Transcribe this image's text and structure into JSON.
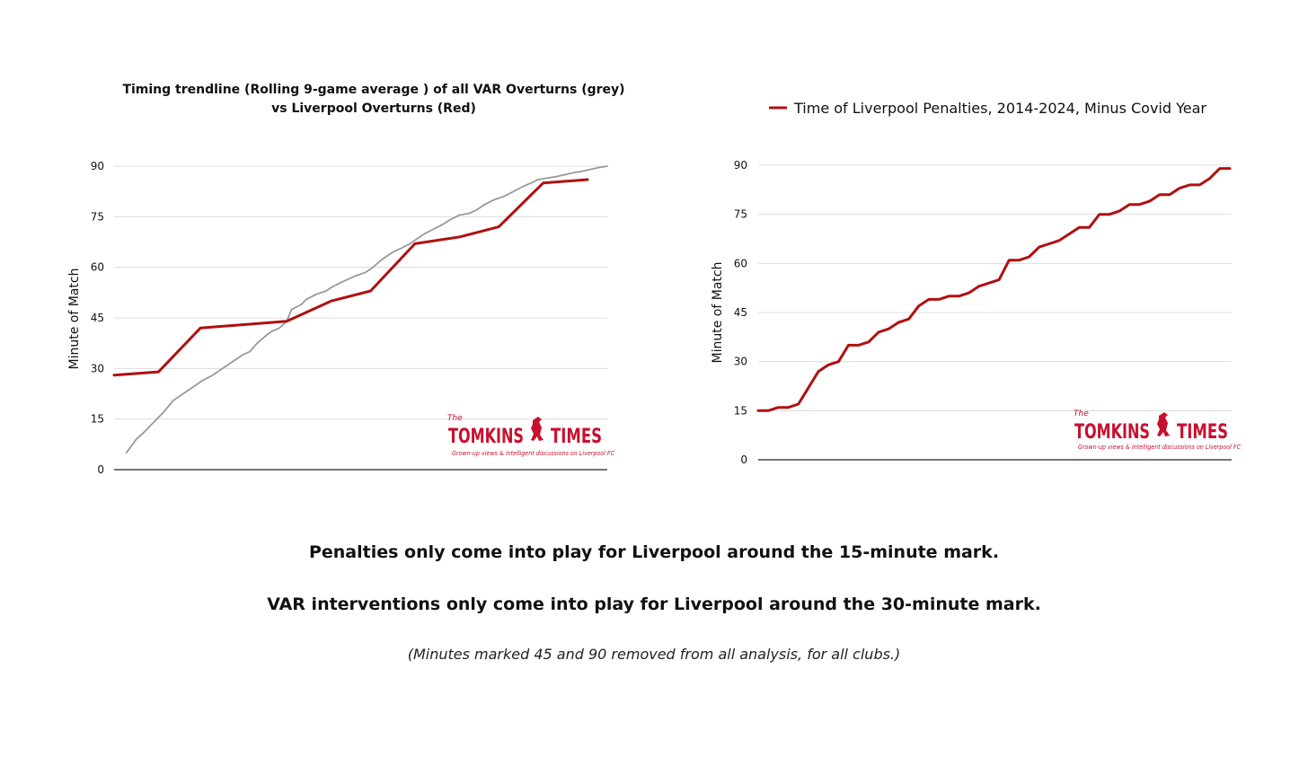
{
  "brand": {
    "the": "The",
    "name_left": "TOMKINS",
    "name_right": "TIMES",
    "tagline": "Grown-up views & intelligent discussions on Liverpool FC",
    "color": "#c8102e"
  },
  "captions": {
    "line1": "Penalties only come into play for Liverpool around the 15-minute mark.",
    "line2": "VAR interventions only come into play for Liverpool around the 30-minute mark.",
    "line3": "(Minutes marked 45 and 90 removed from all analysis, for all clubs.)"
  },
  "chart_data": [
    {
      "type": "line",
      "title": "Timing trendline (Rolling 9-game average ) of all VAR Overturns (grey) vs Liverpool Overturns (Red)",
      "title_lines": [
        "Timing trendline (Rolling 9-game average ) of all VAR Overturns (grey)",
        "vs Liverpool Overturns (Red)"
      ],
      "xlabel": "",
      "ylabel": "Minute of Match",
      "ylim": [
        0,
        90
      ],
      "yticks": [
        0,
        15,
        30,
        45,
        60,
        75,
        90
      ],
      "xlim": [
        0,
        100
      ],
      "grid": true,
      "legend": "none",
      "series": [
        {
          "color": "#999999",
          "x": [
            2.5,
            4.5,
            6,
            8,
            10,
            12,
            13.5,
            15,
            17,
            18,
            20,
            22,
            24,
            25,
            26,
            27.5,
            29,
            31,
            32,
            33.5,
            35,
            36,
            38,
            39,
            41,
            43,
            44,
            46,
            47.5,
            49,
            51,
            52.5,
            54,
            55.5,
            56.5,
            58,
            60,
            61.5,
            63,
            65,
            67,
            68,
            70,
            72,
            73.5,
            75,
            77,
            79,
            81,
            83,
            84.5,
            86,
            88,
            90,
            91.5,
            93,
            95,
            96.5,
            98,
            100
          ],
          "y": [
            5,
            9,
            11,
            14,
            17,
            20.5,
            22,
            23.5,
            25.5,
            26.5,
            28,
            30,
            32,
            33,
            34,
            35,
            37.5,
            40,
            41,
            42,
            44,
            47.5,
            49,
            50.5,
            52,
            53,
            54,
            55.5,
            56.5,
            57.5,
            58.5,
            60,
            62,
            63.5,
            64.5,
            65.5,
            67,
            68.5,
            70,
            71.5,
            73,
            74,
            75.5,
            76,
            77,
            78.5,
            80,
            81,
            82.5,
            84,
            85,
            86,
            86.5,
            87,
            87.5,
            88,
            88.5,
            89,
            89.5,
            90
          ]
        },
        {
          "color": "#b01010",
          "x": [
            0,
            9,
            17.5,
            35,
            44,
            52,
            61,
            70,
            78,
            87,
            96
          ],
          "y": [
            28,
            29,
            42,
            44,
            50,
            53,
            67,
            69,
            72,
            85,
            86
          ]
        }
      ]
    },
    {
      "type": "line",
      "title": "",
      "xlabel": "",
      "ylabel": "Minute of Match",
      "ylim": [
        0,
        90
      ],
      "yticks": [
        0,
        15,
        30,
        45,
        60,
        75,
        90
      ],
      "grid": true,
      "legend": "top",
      "series": [
        {
          "name": "Time of Liverpool Penalties, 2014-2024, Minus Covid Year",
          "color": "#b01010",
          "y": [
            15,
            15,
            16,
            16,
            17,
            22,
            27,
            29,
            30,
            35,
            35,
            36,
            39,
            40,
            42,
            43,
            47,
            49,
            49,
            50,
            50,
            51,
            53,
            54,
            55,
            61,
            61,
            62,
            65,
            66,
            67,
            69,
            71,
            71,
            75,
            75,
            76,
            78,
            78,
            79,
            81,
            81,
            83,
            84,
            84,
            86,
            89,
            89
          ]
        }
      ]
    }
  ]
}
